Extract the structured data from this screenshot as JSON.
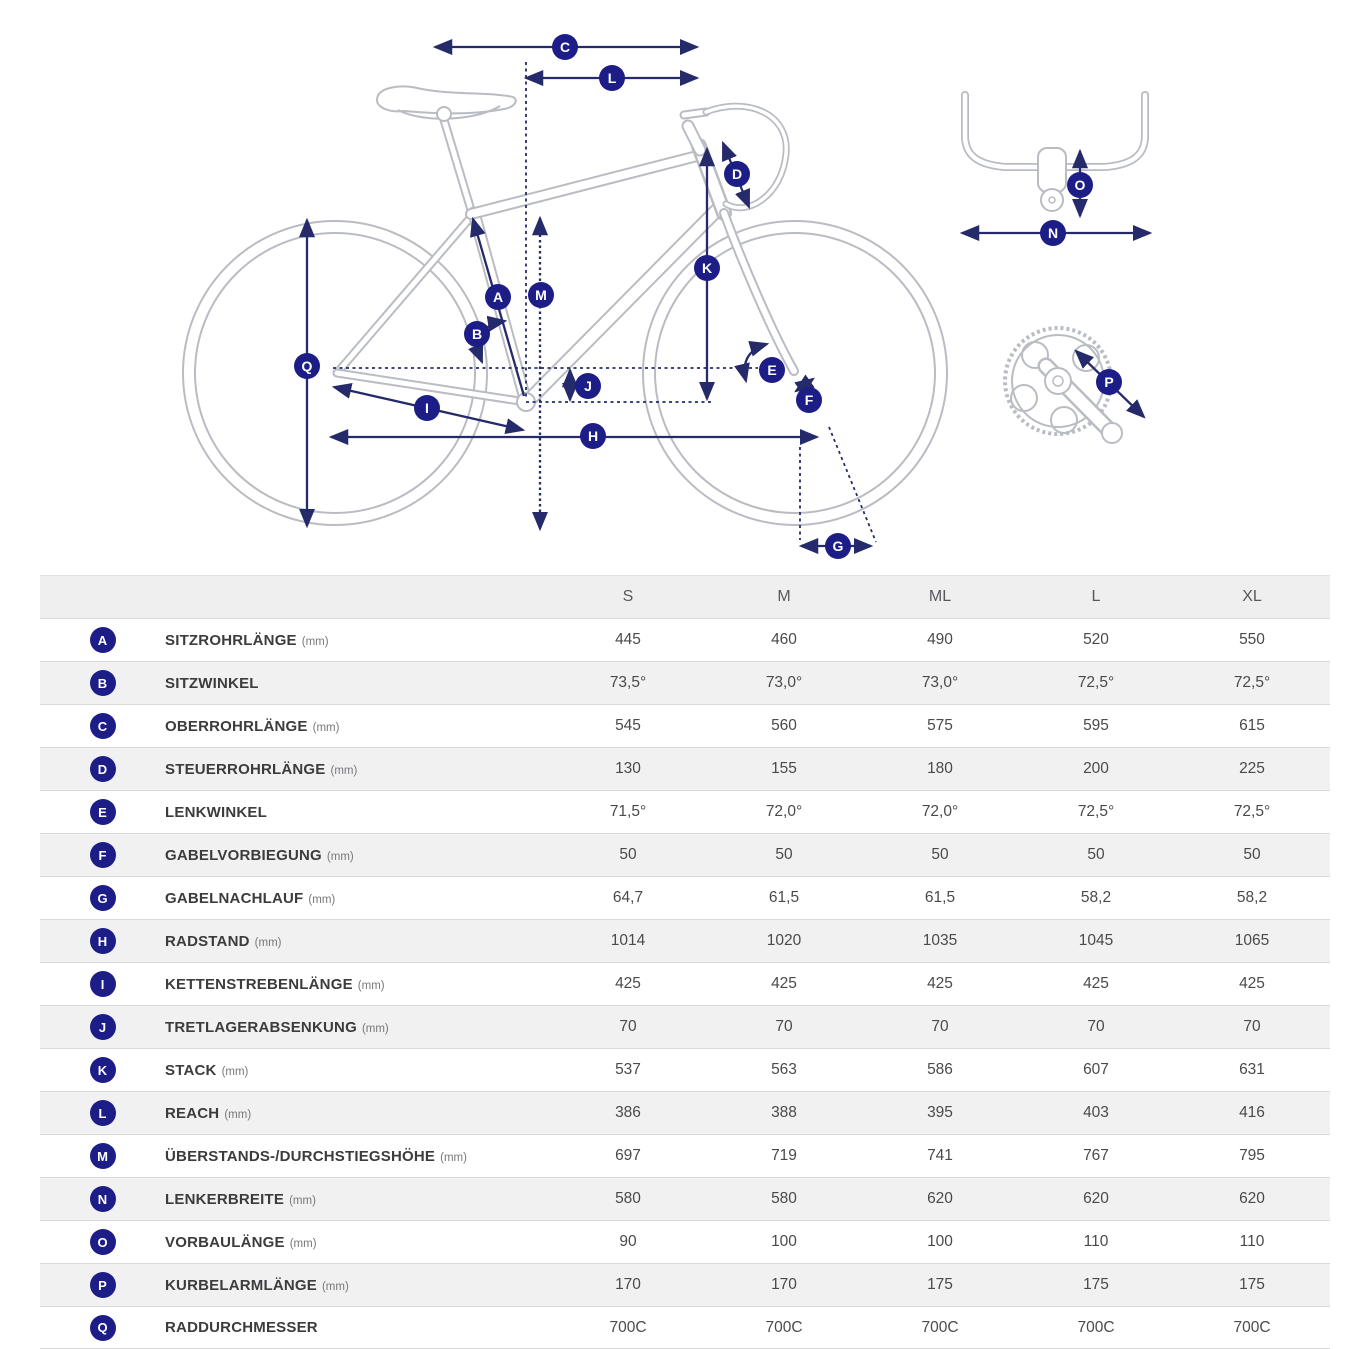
{
  "colors": {
    "accent_navy_badge": "#1c1d87",
    "accent_navy_line": "#252a6a",
    "bike_outline_gray": "#b9bcc2",
    "stripe_row_bg": "#f1f1f2",
    "header_row_bg": "#f0eff0"
  },
  "diagram": {
    "markers": [
      "A",
      "B",
      "C",
      "D",
      "E",
      "F",
      "G",
      "H",
      "I",
      "J",
      "K",
      "L",
      "M",
      "N",
      "O",
      "P",
      "Q"
    ]
  },
  "table": {
    "size_headers": [
      "S",
      "M",
      "ML",
      "L",
      "XL"
    ],
    "rows": [
      {
        "key": "A",
        "label": "SITZROHRLÄNGE",
        "unit": "(mm)",
        "values": [
          "445",
          "460",
          "490",
          "520",
          "550"
        ]
      },
      {
        "key": "B",
        "label": "SITZWINKEL",
        "unit": "",
        "values": [
          "73,5°",
          "73,0°",
          "73,0°",
          "72,5°",
          "72,5°"
        ]
      },
      {
        "key": "C",
        "label": "OBERROHRLÄNGE",
        "unit": "(mm)",
        "values": [
          "545",
          "560",
          "575",
          "595",
          "615"
        ]
      },
      {
        "key": "D",
        "label": "STEUERROHRLÄNGE",
        "unit": "(mm)",
        "values": [
          "130",
          "155",
          "180",
          "200",
          "225"
        ]
      },
      {
        "key": "E",
        "label": "LENKWINKEL",
        "unit": "",
        "values": [
          "71,5°",
          "72,0°",
          "72,0°",
          "72,5°",
          "72,5°"
        ]
      },
      {
        "key": "F",
        "label": "GABELVORBIEGUNG",
        "unit": "(mm)",
        "values": [
          "50",
          "50",
          "50",
          "50",
          "50"
        ]
      },
      {
        "key": "G",
        "label": "GABELNACHLAUF",
        "unit": "(mm)",
        "values": [
          "64,7",
          "61,5",
          "61,5",
          "58,2",
          "58,2"
        ]
      },
      {
        "key": "H",
        "label": "RADSTAND",
        "unit": "(mm)",
        "values": [
          "1014",
          "1020",
          "1035",
          "1045",
          "1065"
        ]
      },
      {
        "key": "I",
        "label": "KETTENSTREBENLÄNGE",
        "unit": "(mm)",
        "values": [
          "425",
          "425",
          "425",
          "425",
          "425"
        ]
      },
      {
        "key": "J",
        "label": "TRETLAGERABSENKUNG",
        "unit": "(mm)",
        "values": [
          "70",
          "70",
          "70",
          "70",
          "70"
        ]
      },
      {
        "key": "K",
        "label": "STACK",
        "unit": "(mm)",
        "values": [
          "537",
          "563",
          "586",
          "607",
          "631"
        ]
      },
      {
        "key": "L",
        "label": "REACH",
        "unit": "(mm)",
        "values": [
          "386",
          "388",
          "395",
          "403",
          "416"
        ]
      },
      {
        "key": "M",
        "label": "ÜBERSTANDS-/DURCHSTIEGSHÖHE",
        "unit": "(mm)",
        "values": [
          "697",
          "719",
          "741",
          "767",
          "795"
        ]
      },
      {
        "key": "N",
        "label": "LENKERBREITE",
        "unit": "(mm)",
        "values": [
          "580",
          "580",
          "620",
          "620",
          "620"
        ]
      },
      {
        "key": "O",
        "label": "VORBAULÄNGE",
        "unit": "(mm)",
        "values": [
          "90",
          "100",
          "100",
          "110",
          "110"
        ]
      },
      {
        "key": "P",
        "label": "KURBELARMLÄNGE",
        "unit": "(mm)",
        "values": [
          "170",
          "170",
          "175",
          "175",
          "175"
        ]
      },
      {
        "key": "Q",
        "label": "RADDURCHMESSER",
        "unit": "",
        "values": [
          "700C",
          "700C",
          "700C",
          "700C",
          "700C"
        ]
      }
    ]
  }
}
